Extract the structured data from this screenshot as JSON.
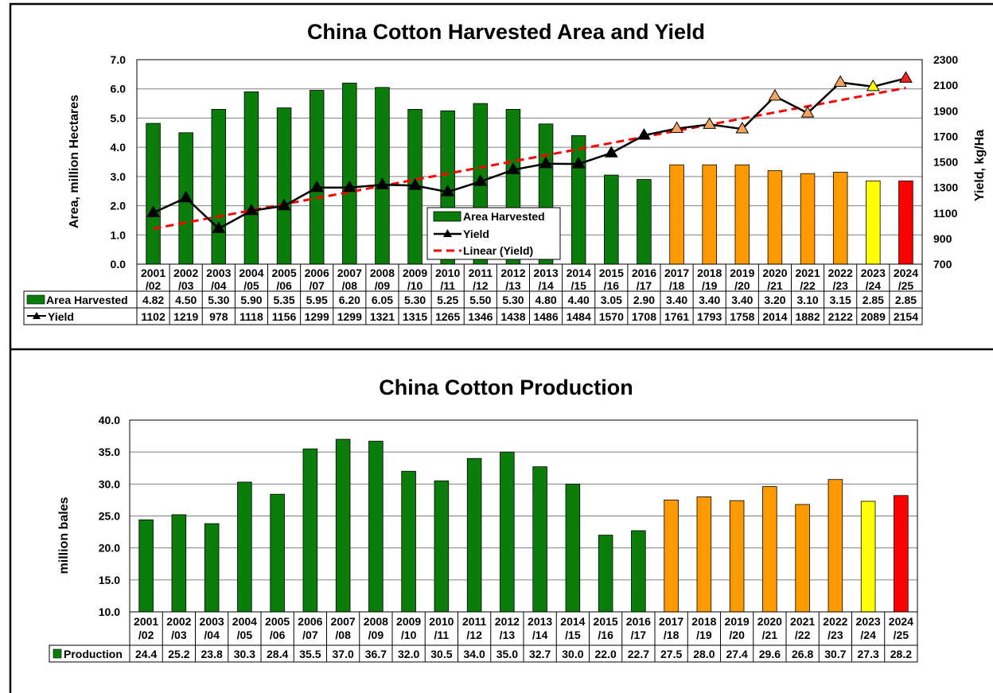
{
  "chart_data": [
    {
      "type": "bar",
      "title": "China Cotton Harvested Area and Yield",
      "ylabel": "Area,  million Hectares",
      "y2label": "Yield, kg/Ha",
      "ylim": [
        0,
        7
      ],
      "y2lim": [
        700,
        2300
      ],
      "yticks": [
        "0.0",
        "1.0",
        "2.0",
        "3.0",
        "4.0",
        "5.0",
        "6.0",
        "7.0"
      ],
      "y2ticks": [
        "700",
        "900",
        "1100",
        "1300",
        "1500",
        "1700",
        "1900",
        "2100",
        "2300"
      ],
      "grid": true,
      "legend_position": "center-bottom",
      "categories": [
        [
          "2001",
          "/02"
        ],
        [
          "2002",
          "/03"
        ],
        [
          "2003",
          "/04"
        ],
        [
          "2004",
          "/05"
        ],
        [
          "2005",
          "/06"
        ],
        [
          "2006",
          "/07"
        ],
        [
          "2007",
          "/08"
        ],
        [
          "2008",
          "/09"
        ],
        [
          "2009",
          "/10"
        ],
        [
          "2010",
          "/11"
        ],
        [
          "2011",
          "/12"
        ],
        [
          "2012",
          "/13"
        ],
        [
          "2013",
          "/14"
        ],
        [
          "2014",
          "/15"
        ],
        [
          "2015",
          "/16"
        ],
        [
          "2016",
          "/17"
        ],
        [
          "2017",
          "/18"
        ],
        [
          "2018",
          "/19"
        ],
        [
          "2019",
          "/20"
        ],
        [
          "2020",
          "/21"
        ],
        [
          "2021",
          "/22"
        ],
        [
          "2022",
          "/23"
        ],
        [
          "2023",
          "/24"
        ],
        [
          "2024",
          "/25"
        ]
      ],
      "colors": {
        "history": "#0a7d0a",
        "projection": "#ff9900",
        "estimate": "#ffff00",
        "forecast": "#ff0000",
        "line": "#000000",
        "trend": "#ff0000"
      },
      "bar_colors": [
        "history",
        "history",
        "history",
        "history",
        "history",
        "history",
        "history",
        "history",
        "history",
        "history",
        "history",
        "history",
        "history",
        "history",
        "history",
        "history",
        "projection",
        "projection",
        "projection",
        "projection",
        "projection",
        "projection",
        "estimate",
        "forecast"
      ],
      "series": [
        {
          "name": "Area Harvested",
          "type": "bar",
          "axis": "left",
          "values": [
            4.82,
            4.5,
            5.3,
            5.9,
            5.35,
            5.95,
            6.2,
            6.05,
            5.3,
            5.25,
            5.5,
            5.3,
            4.8,
            4.4,
            3.05,
            2.9,
            3.4,
            3.4,
            3.4,
            3.2,
            3.1,
            3.15,
            2.85,
            2.85
          ],
          "labels": [
            "4.82",
            "4.50",
            "5.30",
            "5.90",
            "5.35",
            "5.95",
            "6.20",
            "6.05",
            "5.30",
            "5.25",
            "5.50",
            "5.30",
            "4.80",
            "4.40",
            "3.05",
            "2.90",
            "3.40",
            "3.40",
            "3.40",
            "3.20",
            "3.10",
            "3.15",
            "2.85",
            "2.85"
          ]
        },
        {
          "name": "Yield",
          "type": "line",
          "axis": "right",
          "values": [
            1102,
            1219,
            978,
            1118,
            1156,
            1299,
            1299,
            1321,
            1315,
            1265,
            1346,
            1438,
            1486,
            1484,
            1570,
            1708,
            1761,
            1793,
            1758,
            2014,
            1882,
            2122,
            2089,
            2154
          ],
          "labels": [
            "1102",
            "1219",
            "978",
            "1118",
            "1156",
            "1299",
            "1299",
            "1321",
            "1315",
            "1265",
            "1346",
            "1438",
            "1486",
            "1484",
            "1570",
            "1708",
            "1761",
            "1793",
            "1758",
            "2014",
            "1882",
            "2122",
            "2089",
            "2154"
          ]
        },
        {
          "name": "Linear (Yield)",
          "type": "trendline",
          "axis": "right"
        }
      ]
    },
    {
      "type": "bar",
      "title": "China Cotton Production",
      "ylabel": "million bales",
      "ylim": [
        10,
        40
      ],
      "yticks": [
        "10.0",
        "15.0",
        "20.0",
        "25.0",
        "30.0",
        "35.0",
        "40.0"
      ],
      "grid": true,
      "categories": [
        [
          "2001",
          "/02"
        ],
        [
          "2002",
          "/03"
        ],
        [
          "2003",
          "/04"
        ],
        [
          "2004",
          "/05"
        ],
        [
          "2005",
          "/06"
        ],
        [
          "2006",
          "/07"
        ],
        [
          "2007",
          "/08"
        ],
        [
          "2008",
          "/09"
        ],
        [
          "2009",
          "/10"
        ],
        [
          "2010",
          "/11"
        ],
        [
          "2011",
          "/12"
        ],
        [
          "2012",
          "/13"
        ],
        [
          "2013",
          "/14"
        ],
        [
          "2014",
          "/15"
        ],
        [
          "2015",
          "/16"
        ],
        [
          "2016",
          "/17"
        ],
        [
          "2017",
          "/18"
        ],
        [
          "2018",
          "/19"
        ],
        [
          "2019",
          "/20"
        ],
        [
          "2020",
          "/21"
        ],
        [
          "2021",
          "/22"
        ],
        [
          "2022",
          "/23"
        ],
        [
          "2023",
          "/24"
        ],
        [
          "2024",
          "/25"
        ]
      ],
      "bar_colors": [
        "history",
        "history",
        "history",
        "history",
        "history",
        "history",
        "history",
        "history",
        "history",
        "history",
        "history",
        "history",
        "history",
        "history",
        "history",
        "history",
        "projection",
        "projection",
        "projection",
        "projection",
        "projection",
        "projection",
        "estimate",
        "forecast"
      ],
      "series": [
        {
          "name": "Production",
          "type": "bar",
          "axis": "left",
          "values": [
            24.4,
            25.2,
            23.8,
            30.3,
            28.4,
            35.5,
            37.0,
            36.7,
            32.0,
            30.5,
            34.0,
            35.0,
            32.7,
            30.0,
            22.0,
            22.7,
            27.5,
            28.0,
            27.4,
            29.6,
            26.8,
            30.7,
            27.3,
            28.2
          ],
          "labels": [
            "24.4",
            "25.2",
            "23.8",
            "30.3",
            "28.4",
            "35.5",
            "37.0",
            "36.7",
            "32.0",
            "30.5",
            "34.0",
            "35.0",
            "32.7",
            "30.0",
            "22.0",
            "22.7",
            "27.5",
            "28.0",
            "27.4",
            "29.6",
            "26.8",
            "30.7",
            "27.3",
            "28.2"
          ]
        }
      ]
    }
  ]
}
